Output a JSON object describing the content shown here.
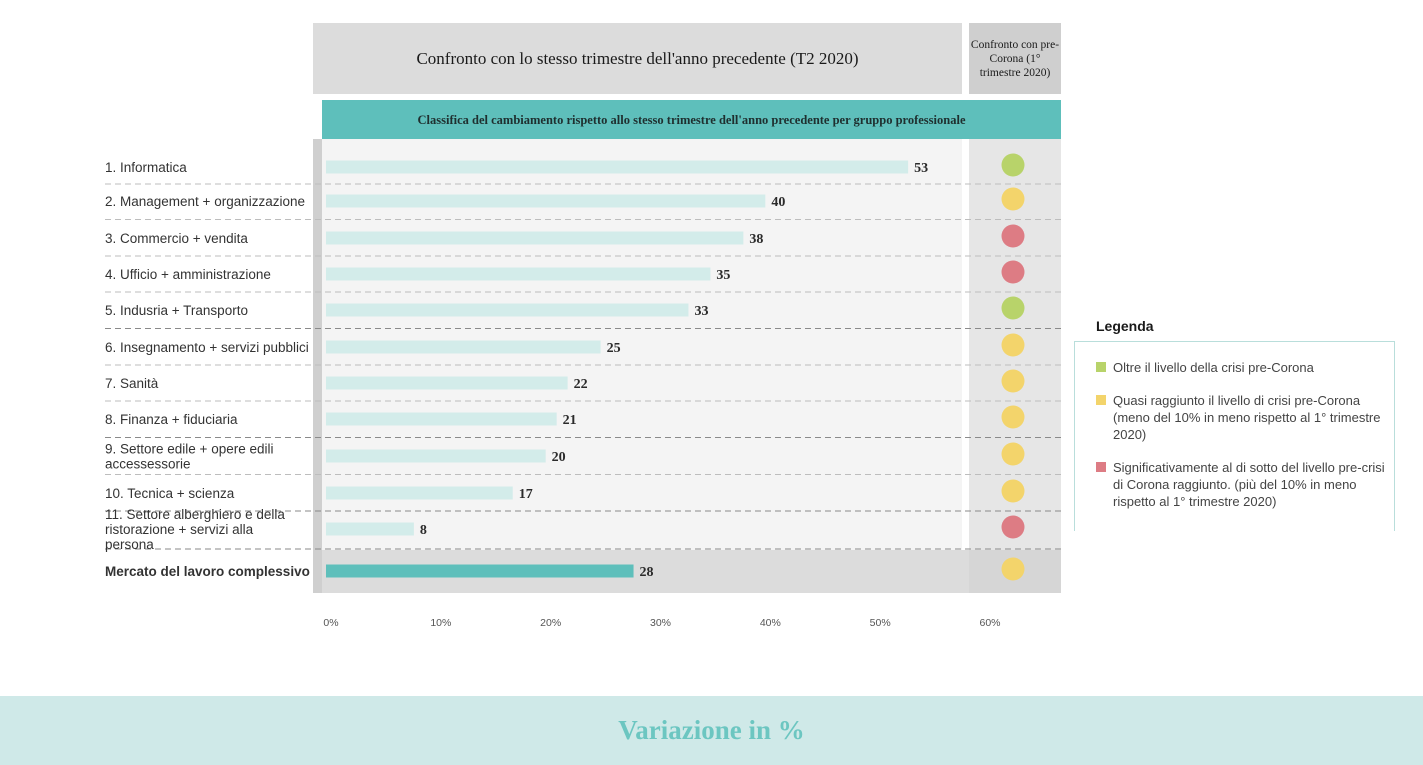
{
  "header": {
    "title": "Confronto con lo stesso trimestre dell'anno precedente (T2 2020)",
    "side_title": "Confronto con pre-Corona (1° trimestre 2020)"
  },
  "subheader": "Classifica del cambiamento rispetto allo stesso trimestre dell'anno precedente per gruppo professionale",
  "colors": {
    "bar": "#d3ecea",
    "bar_total": "#5ebfbb",
    "green": "#b8d36a",
    "yellow": "#f3d46b",
    "red": "#dd7c84"
  },
  "chart_data": {
    "type": "bar",
    "orientation": "horizontal",
    "categories": [
      "1. Informatica",
      "2. Management + organizzazione",
      "3. Commercio + vendita",
      "4. Ufficio + amministrazione",
      "5. Indusria + Transporto",
      "6. Insegnamento + servizi pubblici",
      "7. Sanità",
      "8. Finanza + fiduciaria",
      "9. Settore edile + opere edili accessessorie",
      "10. Tecnica + scienza",
      "11. Settore alberghiero e della ristorazione + servizi alla persona",
      "Mercato del lavoro complessivo"
    ],
    "values": [
      53,
      40,
      38,
      35,
      33,
      25,
      22,
      21,
      20,
      17,
      8,
      28
    ],
    "status": [
      "green",
      "yellow",
      "red",
      "red",
      "green",
      "yellow",
      "yellow",
      "yellow",
      "yellow",
      "yellow",
      "red",
      "yellow"
    ],
    "x_ticks": [
      "0%",
      "10%",
      "20%",
      "30%",
      "40%",
      "50%",
      "60%"
    ],
    "xlim": [
      0,
      60
    ],
    "xlabel": "Variazione in %"
  },
  "legend": {
    "title": "Legenda",
    "items": [
      {
        "color": "green",
        "text": "Oltre il livello della crisi pre-Corona"
      },
      {
        "color": "yellow",
        "text": "Quasi raggiunto il livello di crisi pre-Corona (meno del 10% in meno rispetto al 1° trimestre 2020)"
      },
      {
        "color": "red",
        "text": "Significativamente al di sotto del livello pre-crisi di Corona raggiunto. (più del 10% in meno rispetto al 1° trimestre 2020)"
      }
    ]
  }
}
